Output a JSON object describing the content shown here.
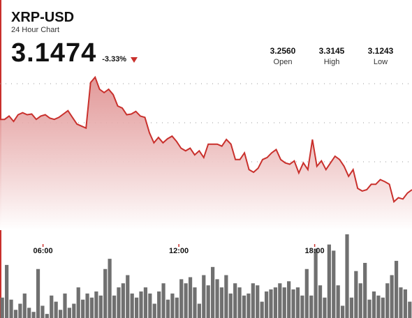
{
  "header": {
    "symbol": "XRP-USD",
    "subtitle": "24 Hour Chart",
    "price": "3.1474",
    "change": "-3.33%",
    "change_direction_icon": "down-triangle-icon"
  },
  "stats": [
    {
      "label": "Open",
      "value": "3.2560"
    },
    {
      "label": "High",
      "value": "3.3145"
    },
    {
      "label": "Low",
      "value": "3.1243"
    }
  ],
  "colors": {
    "accent": "#c9302c",
    "fill_top": "#dd8888",
    "volume_bar": "#707070",
    "gridline": "#9a9a9a",
    "background": "#ffffff"
  },
  "chart_data": {
    "type": "area",
    "x_ticks": [
      "06:00",
      "12:00",
      "18:00"
    ],
    "x_tick_hours": [
      6,
      12,
      18
    ],
    "x_range_hours": [
      4.1,
      22.3
    ],
    "ylim": [
      3.1,
      3.325
    ],
    "grid": "horizontal dotted",
    "series": [
      {
        "x_hours": [
          4.1,
          4.3,
          4.5,
          4.7,
          4.9,
          5.1,
          5.3,
          5.5,
          5.7,
          5.9,
          6.1,
          6.3,
          6.5,
          6.7,
          6.9,
          7.1,
          7.3,
          7.5,
          7.7,
          7.9,
          8.1,
          8.3,
          8.5,
          8.7,
          8.9,
          9.1,
          9.3,
          9.5,
          9.7,
          9.9,
          10.1,
          10.3,
          10.5,
          10.7,
          10.9,
          11.1,
          11.3,
          11.5,
          11.7,
          11.9,
          12.1,
          12.3,
          12.5,
          12.7,
          12.9,
          13.1,
          13.3,
          13.5,
          13.7,
          13.9,
          14.1,
          14.3,
          14.5,
          14.7,
          14.9,
          15.1,
          15.3,
          15.5,
          15.7,
          15.9,
          16.1,
          16.3,
          16.5,
          16.7,
          16.9,
          17.1,
          17.3,
          17.5,
          17.7,
          17.9,
          18.1,
          18.3,
          18.5,
          18.7,
          18.9,
          19.1,
          19.3,
          19.5,
          19.7,
          19.9,
          20.1,
          20.3,
          20.5,
          20.7,
          20.9,
          21.1,
          21.3,
          21.5,
          21.7,
          21.9,
          22.1,
          22.3
        ],
        "values": [
          3.255,
          3.255,
          3.26,
          3.252,
          3.262,
          3.265,
          3.262,
          3.263,
          3.255,
          3.26,
          3.262,
          3.257,
          3.255,
          3.258,
          3.263,
          3.268,
          3.258,
          3.248,
          3.245,
          3.242,
          3.31,
          3.318,
          3.3,
          3.295,
          3.3,
          3.292,
          3.275,
          3.272,
          3.262,
          3.263,
          3.267,
          3.26,
          3.258,
          3.235,
          3.22,
          3.228,
          3.22,
          3.226,
          3.23,
          3.222,
          3.212,
          3.208,
          3.212,
          3.202,
          3.208,
          3.198,
          3.218,
          3.218,
          3.218,
          3.215,
          3.225,
          3.218,
          3.195,
          3.195,
          3.205,
          3.18,
          3.176,
          3.182,
          3.195,
          3.198,
          3.205,
          3.21,
          3.195,
          3.19,
          3.188,
          3.193,
          3.175,
          3.19,
          3.18,
          3.225,
          3.185,
          3.193,
          3.18,
          3.19,
          3.2,
          3.195,
          3.185,
          3.17,
          3.18,
          3.152,
          3.148,
          3.15,
          3.158,
          3.158,
          3.165,
          3.162,
          3.158,
          3.132,
          3.138,
          3.136,
          3.145,
          3.15
        ]
      },
      {
        "name": "Volume",
        "type": "bar",
        "values": [
          20,
          52,
          18,
          8,
          14,
          24,
          10,
          6,
          48,
          12,
          4,
          22,
          16,
          8,
          24,
          10,
          14,
          30,
          18,
          24,
          20,
          26,
          22,
          48,
          58,
          22,
          30,
          34,
          42,
          24,
          20,
          26,
          30,
          24,
          14,
          26,
          34,
          18,
          24,
          20,
          38,
          34,
          40,
          30,
          14,
          42,
          32,
          50,
          38,
          30,
          42,
          24,
          34,
          30,
          22,
          24,
          34,
          32,
          16,
          26,
          28,
          30,
          34,
          30,
          36,
          28,
          30,
          22,
          48,
          22,
          68,
          32,
          20,
          72,
          66,
          32,
          12,
          82,
          20,
          46,
          34,
          54,
          18,
          26,
          22,
          20,
          34,
          42,
          56,
          30,
          28,
          16
        ]
      }
    ]
  }
}
